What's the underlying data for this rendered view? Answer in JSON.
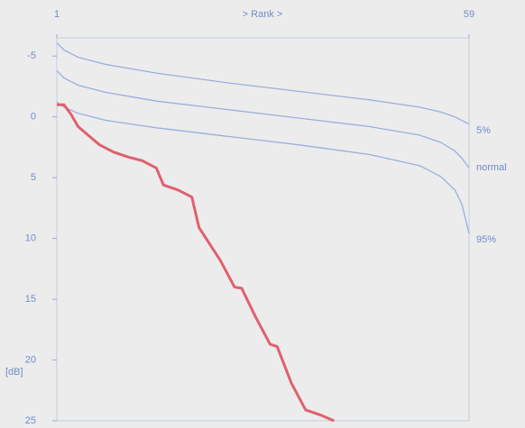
{
  "chart_data": {
    "type": "line",
    "x_label": "> Rank >",
    "y_label": "[dB]",
    "xlim": [
      1,
      59
    ],
    "xticks": [
      1,
      59
    ],
    "ylim": [
      -6.5,
      25
    ],
    "yticks": [
      -5,
      0,
      5,
      10,
      15,
      20,
      25
    ],
    "y_reversed": true,
    "series": [
      {
        "name": "5%",
        "color": "#9ab0dc",
        "x": [
          1,
          2,
          4,
          8,
          15,
          25,
          35,
          45,
          52,
          55,
          57,
          58,
          59
        ],
        "values": [
          -6.1,
          -5.5,
          -4.9,
          -4.3,
          -3.6,
          -2.8,
          -2.1,
          -1.4,
          -0.8,
          -0.4,
          0,
          0.3,
          0.6
        ]
      },
      {
        "name": "normal",
        "color": "#9ab0dc",
        "x": [
          1,
          2,
          4,
          8,
          15,
          25,
          35,
          45,
          52,
          55,
          57,
          58,
          59
        ],
        "values": [
          -3.8,
          -3.2,
          -2.6,
          -2.0,
          -1.3,
          -0.6,
          0.1,
          0.8,
          1.5,
          2.1,
          2.8,
          3.4,
          4.2
        ]
      },
      {
        "name": "95%",
        "color": "#9ab0dc",
        "x": [
          1,
          2,
          4,
          8,
          15,
          25,
          35,
          45,
          52,
          55,
          57,
          58,
          59
        ],
        "values": [
          -1.2,
          -0.8,
          -0.3,
          0.3,
          0.9,
          1.6,
          2.3,
          3.1,
          4.0,
          4.9,
          6.0,
          7.2,
          9.6
        ]
      },
      {
        "color": "#e0606e",
        "x": [
          1,
          2,
          3,
          4,
          6,
          7,
          9,
          11,
          13,
          15,
          16,
          18,
          20,
          21,
          24,
          26,
          27,
          29,
          31,
          32,
          34,
          36,
          38,
          40
        ],
        "values": [
          -1.0,
          -1.0,
          -0.2,
          0.8,
          1.8,
          2.3,
          2.9,
          3.3,
          3.6,
          4.2,
          5.6,
          6.0,
          6.6,
          9.1,
          11.8,
          14.0,
          14.1,
          16.5,
          18.7,
          18.9,
          21.9,
          24.1,
          24.5,
          25.0
        ]
      }
    ]
  }
}
